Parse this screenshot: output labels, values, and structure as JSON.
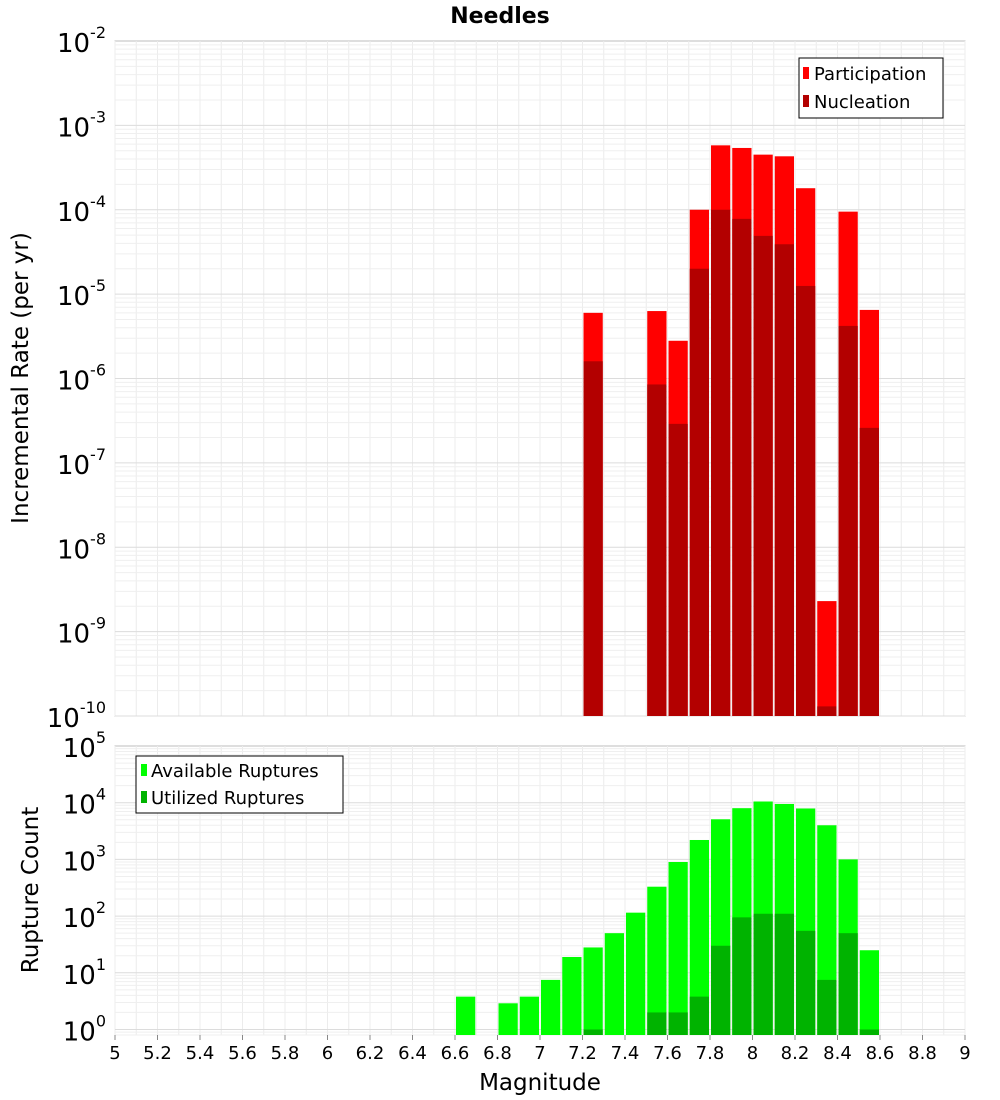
{
  "chart_data": [
    {
      "type": "bar",
      "title": "Needles",
      "ylabel": "Incremental Rate (per yr)",
      "xlabel": "",
      "xlim": [
        5,
        9
      ],
      "ylim": [
        1e-10,
        0.01
      ],
      "yscale": "log",
      "y_tick_labels": [
        {
          "value": 1e-10,
          "base": "10",
          "exp": "-10"
        },
        {
          "value": 1e-09,
          "base": "10",
          "exp": "-9"
        },
        {
          "value": 1e-08,
          "base": "10",
          "exp": "-8"
        },
        {
          "value": 1e-07,
          "base": "10",
          "exp": "-7"
        },
        {
          "value": 1e-06,
          "base": "10",
          "exp": "-6"
        },
        {
          "value": 1e-05,
          "base": "10",
          "exp": "-5"
        },
        {
          "value": 0.0001,
          "base": "10",
          "exp": "-4"
        },
        {
          "value": 0.001,
          "base": "10",
          "exp": "-3"
        },
        {
          "value": 0.01,
          "base": "10",
          "exp": "-2"
        }
      ],
      "grid": true,
      "legend_position": "top-right",
      "series": [
        {
          "name": "Participation",
          "color": "#ff0000",
          "x": [
            7.25,
            7.55,
            7.65,
            7.75,
            7.85,
            7.95,
            8.05,
            8.15,
            8.25,
            8.35,
            8.45,
            8.55
          ],
          "values": [
            6e-06,
            6.3e-06,
            2.8e-06,
            0.0001,
            0.00058,
            0.00054,
            0.00045,
            0.00043,
            0.00018,
            2.3e-09,
            9.5e-05,
            6.5e-06
          ]
        },
        {
          "name": "Nucleation",
          "color": "#b30000",
          "x": [
            7.25,
            7.55,
            7.65,
            7.75,
            7.85,
            7.95,
            8.05,
            8.15,
            8.25,
            8.35,
            8.45,
            8.55
          ],
          "values": [
            1.6e-06,
            8.5e-07,
            2.9e-07,
            2e-05,
            0.0001,
            7.8e-05,
            4.9e-05,
            3.9e-05,
            1.25e-05,
            1.3e-10,
            4.2e-06,
            2.6e-07
          ]
        }
      ]
    },
    {
      "type": "bar",
      "title": "",
      "ylabel": "Rupture Count",
      "xlabel": "Magnitude",
      "xlim": [
        5,
        9
      ],
      "ylim": [
        0.8,
        100000.0
      ],
      "yscale": "log",
      "x_tick_labels": [
        "5",
        "5.2",
        "5.4",
        "5.6",
        "5.8",
        "6",
        "6.2",
        "6.4",
        "6.6",
        "6.8",
        "7",
        "7.2",
        "7.4",
        "7.6",
        "7.8",
        "8",
        "8.2",
        "8.4",
        "8.6",
        "8.8",
        "9"
      ],
      "y_tick_labels": [
        {
          "value": 1,
          "base": "10",
          "exp": "0"
        },
        {
          "value": 10,
          "base": "10",
          "exp": "1"
        },
        {
          "value": 100,
          "base": "10",
          "exp": "2"
        },
        {
          "value": 1000,
          "base": "10",
          "exp": "3"
        },
        {
          "value": 10000,
          "base": "10",
          "exp": "4"
        },
        {
          "value": 100000,
          "base": "10",
          "exp": "5"
        }
      ],
      "grid": true,
      "legend_position": "top-left",
      "series": [
        {
          "name": "Available Ruptures",
          "color": "#00ff00",
          "x": [
            6.65,
            6.85,
            6.95,
            7.05,
            7.15,
            7.25,
            7.35,
            7.45,
            7.55,
            7.65,
            7.75,
            7.85,
            7.95,
            8.05,
            8.15,
            8.25,
            8.35,
            8.45,
            8.55
          ],
          "values": [
            3.8,
            2.9,
            3.8,
            7.5,
            19,
            28,
            50,
            115,
            330,
            900,
            2200,
            5100,
            8000,
            10500,
            9500,
            7900,
            4000,
            1000,
            25
          ]
        },
        {
          "name": "Utilized Ruptures",
          "color": "#00b300",
          "x": [
            7.25,
            7.55,
            7.65,
            7.75,
            7.85,
            7.95,
            8.05,
            8.15,
            8.25,
            8.35,
            8.45,
            8.55
          ],
          "values": [
            1,
            2,
            2,
            3.8,
            30,
            95,
            110,
            110,
            55,
            7.5,
            50,
            1
          ]
        }
      ]
    }
  ]
}
